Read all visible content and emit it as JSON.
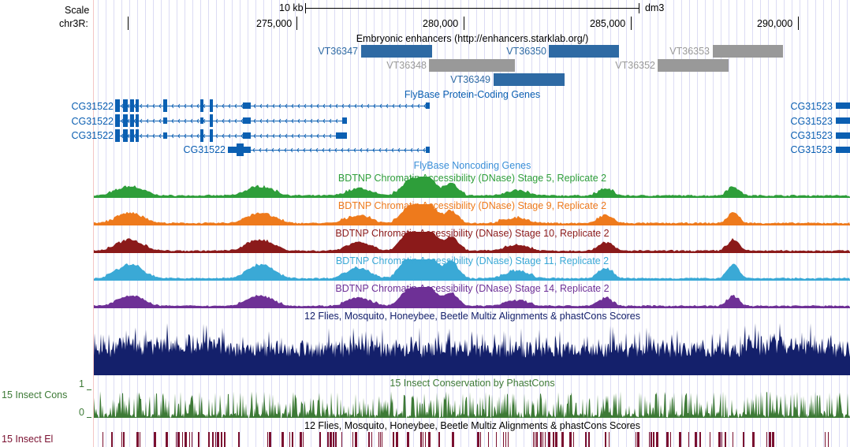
{
  "header": {
    "scale_label": "Scale",
    "scale_value": "10 kb",
    "assembly": "dm3",
    "chrom_label": "chr3R:",
    "positions": [
      "275,000",
      "280,000",
      "285,000",
      "290,000"
    ]
  },
  "enhancers": {
    "title": "Embryonic enhancers (http://enhancers.starklab.org/)",
    "items": [
      "VT36347",
      "VT36350",
      "VT36353",
      "VT36348",
      "VT36352",
      "VT36349"
    ]
  },
  "protein_genes": {
    "title": "FlyBase Protein-Coding Genes",
    "left_names": [
      "CG31522",
      "CG31522",
      "CG31522",
      "CG31522"
    ],
    "right_names": [
      "CG31523",
      "CG31523",
      "CG31523",
      "CG31523"
    ]
  },
  "noncoding": {
    "title": "FlyBase Noncoding Genes"
  },
  "dnase": [
    {
      "title": "BDTNP Chromatin Accessibility (DNase) Stage 5, Replicate 2",
      "color": "#2e9e3a"
    },
    {
      "title": "BDTNP Chromatin Accessibility (DNase) Stage 9, Replicate 2",
      "color": "#ee7a1c"
    },
    {
      "title": "BDTNP Chromatin Accessibility (DNase) Stage 10, Replicate 2",
      "color": "#8b1a1a"
    },
    {
      "title": "BDTNP Chromatin Accessibility (DNase) Stage 11, Replicate 2",
      "color": "#3aa9d6"
    },
    {
      "title": "BDTNP Chromatin Accessibility (DNase) Stage 14, Replicate 2",
      "color": "#6e3096"
    }
  ],
  "multiz": {
    "title": "12 Flies, Mosquito, Honeybee, Beetle Multiz Alignments & phastCons Scores"
  },
  "insect_cons": {
    "side_label": "15 Insect Cons",
    "title": "15 Insect Conservation by PhastCons",
    "ymax": "1",
    "ymin": "0"
  },
  "insect_el": {
    "side_label": "15 Insect El",
    "title": "12 Flies, Mosquito, Honeybee, Beetle Multiz Alignments & phastCons Scores"
  },
  "colors": {
    "enhancer_blue": "#2e6aa4",
    "enhancer_gray": "#999999",
    "gene_blue": "#0b5fb2",
    "multiz_navy": "#14206b",
    "cons_green": "#3d7a36",
    "el_maroon": "#7a1030",
    "guide_blue": "#dcdcf4",
    "guide_pink": "#f4c6c6"
  }
}
